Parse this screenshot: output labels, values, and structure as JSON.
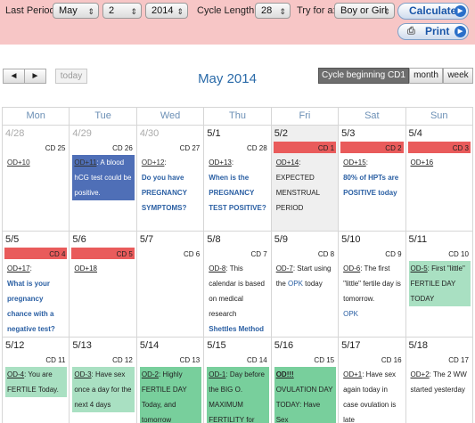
{
  "form": {
    "last_period_label": "Last Period:",
    "month": "May",
    "day": "2",
    "year": "2014",
    "cycle_length_label": "Cycle Length:",
    "cycle_length": "28",
    "try_for_label": "Try for a:",
    "try_for": "Boy or Girl",
    "calculate_label": "Calculate",
    "print_label": "Print"
  },
  "toolbar": {
    "prev": "◄",
    "next": "►",
    "today": "today",
    "month_title": "May 2014",
    "view_cycle": "Cycle beginning CD1",
    "view_month": "month",
    "view_week": "week"
  },
  "weekdays": [
    "Mon",
    "Tue",
    "Wed",
    "Thu",
    "Fri",
    "Sat",
    "Sun"
  ],
  "weeks": [
    [
      {
        "date": "4/28",
        "cd": "CD 25",
        "od": "OD+10",
        "text": ""
      },
      {
        "date": "4/29",
        "cd": "CD 26",
        "od": "OD+11",
        "text": ": A blood hCG test could be positive."
      },
      {
        "date": "4/30",
        "cd": "CD 27",
        "od": "OD+12",
        "text": ":",
        "bold": "Do you have PREGNANCY SYMPTOMS?"
      },
      {
        "date": "5/1",
        "cd": "CD 28",
        "od": "OD+13",
        "text": ":",
        "bold": "When is the PREGNANCY TEST POSITIVE?"
      },
      {
        "date": "5/2",
        "cd": "CD 1",
        "od": "OD+14",
        "text": ": EXPECTED MENSTRUAL PERIOD"
      },
      {
        "date": "5/3",
        "cd": "CD 2",
        "od": "OD+15",
        "text": ":",
        "bold": "80% of HPTs are POSITIVE today"
      },
      {
        "date": "5/4",
        "cd": "CD 3",
        "od": "OD+16",
        "text": ""
      }
    ],
    [
      {
        "date": "5/5",
        "cd": "CD 4",
        "od": "OD+17",
        "text": ":",
        "bold": "What is your pregnancy chance with a negative test?"
      },
      {
        "date": "5/6",
        "cd": "CD 5",
        "od": "OD+18",
        "text": ""
      },
      {
        "date": "5/7",
        "cd": "CD 6",
        "od": "",
        "text": ""
      },
      {
        "date": "5/8",
        "cd": "CD 7",
        "od": "OD-8",
        "text": ": This calendar is based on medical research",
        "bold": "Shettles Method"
      },
      {
        "date": "5/9",
        "cd": "CD 8",
        "od": "OD-7",
        "text": ": Start using the",
        "link": "OPK",
        "tail": " today"
      },
      {
        "date": "5/10",
        "cd": "CD 9",
        "od": "OD-6",
        "text": ": The first \"little\" fertile day is tomorrow.",
        "link2": "OPK"
      },
      {
        "date": "5/11",
        "cd": "CD 10",
        "od": "OD-5",
        "text": ": First \"little\" FERTILE DAY TODAY"
      }
    ],
    [
      {
        "date": "5/12",
        "cd": "CD 11",
        "od": "OD-4",
        "text": ": You are FERTILE Today."
      },
      {
        "date": "5/13",
        "cd": "CD 12",
        "od": "OD-3",
        "text": ": Have sex once a day for the next 4 days"
      },
      {
        "date": "5/14",
        "cd": "CD 13",
        "od": "OD-2",
        "text": ": Highly FERTILE DAY Today, and tomorrow"
      },
      {
        "date": "5/15",
        "cd": "CD 14",
        "od": "OD-1",
        "text": ": Day before the BIG O. MAXIMUM FERTILITY for sex"
      },
      {
        "date": "5/16",
        "cd": "CD 15",
        "od": "OD!!!",
        "text": " OVULATION DAY TODAY: Have Sex"
      },
      {
        "date": "5/17",
        "cd": "CD 16",
        "od": "OD+1",
        "text": ": Have sex again today in case ovulation is late"
      },
      {
        "date": "5/18",
        "cd": "CD 17",
        "od": "OD+2",
        "text": ": The 2 WW started yesterday"
      }
    ]
  ],
  "colors": {
    "topbar": "#f7c6c6",
    "period_red": "#e95b5b",
    "blood_test_blue": "#4f6fb7",
    "fertile_green": "#a9e0c2",
    "high_fertile_green": "#78cf9c",
    "title_blue": "#2a6aa8"
  }
}
